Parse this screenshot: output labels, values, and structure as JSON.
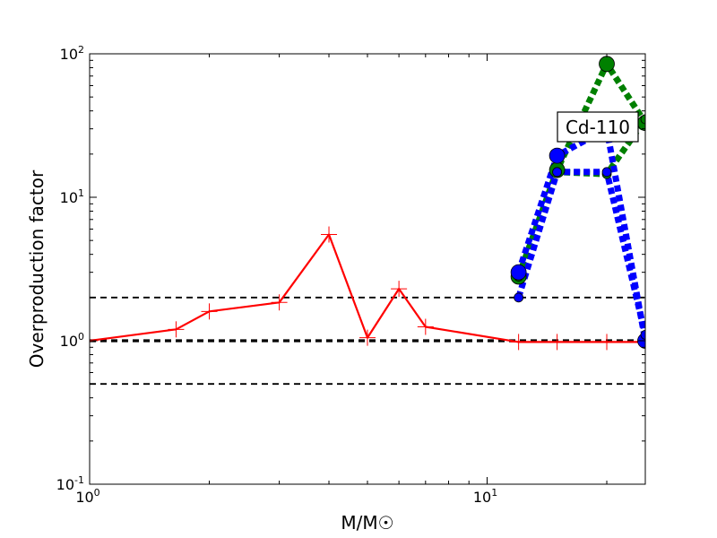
{
  "chart_data": {
    "type": "line",
    "x_scale": "log",
    "y_scale": "log",
    "xlim": [
      1,
      25
    ],
    "ylim": [
      0.1,
      100
    ],
    "xlabel": "M/M☉",
    "ylabel": "Overproduction factor",
    "x_ticks": [
      {
        "value": 1,
        "base": "10",
        "exp": "0"
      },
      {
        "value": 10,
        "base": "10",
        "exp": "1"
      }
    ],
    "y_ticks": [
      {
        "value": 0.1,
        "base": "10",
        "exp": "-1"
      },
      {
        "value": 1,
        "base": "10",
        "exp": "0"
      },
      {
        "value": 10,
        "base": "10",
        "exp": "1"
      },
      {
        "value": 100,
        "base": "10",
        "exp": "2"
      }
    ],
    "reference_lines": [
      {
        "y": 2,
        "style": "dashed",
        "color": "#000000",
        "weight": "thin"
      },
      {
        "y": 1,
        "style": "dashed",
        "color": "#000000",
        "weight": "thick"
      },
      {
        "y": 0.5,
        "style": "dashed",
        "color": "#000000",
        "weight": "thin"
      }
    ],
    "series": [
      {
        "color": "#ff0000",
        "line_style": "solid",
        "marker": "plus",
        "x": [
          1,
          1.65,
          2,
          3,
          4,
          5,
          6,
          7,
          12,
          15,
          20,
          25
        ],
        "y": [
          1.0,
          1.2,
          1.6,
          1.85,
          5.5,
          1.05,
          2.3,
          1.25,
          0.98,
          0.98,
          0.98,
          0.98
        ]
      },
      {
        "color": "#008000",
        "line_style": "dotted",
        "marker": "circle",
        "x": [
          12,
          15,
          20,
          25
        ],
        "y": [
          2.8,
          15.5,
          85,
          33
        ]
      },
      {
        "color": "#008000",
        "line_style": "dotted",
        "marker": "circle-small",
        "x": [
          12,
          15,
          20,
          25
        ],
        "y": [
          2.8,
          15,
          14.5,
          35
        ]
      },
      {
        "color": "#0000ff",
        "line_style": "dotted",
        "marker": "circle",
        "x": [
          12,
          15,
          20,
          25
        ],
        "y": [
          3.0,
          19.5,
          30,
          1.0
        ]
      },
      {
        "color": "#0000ff",
        "line_style": "dotted",
        "marker": "circle-small",
        "x": [
          12,
          15,
          20,
          25
        ],
        "y": [
          2.0,
          15,
          15,
          1.1
        ]
      }
    ],
    "annotation": {
      "text": "Cd-110",
      "position": "top-right"
    },
    "grid": false,
    "legend": "none"
  }
}
